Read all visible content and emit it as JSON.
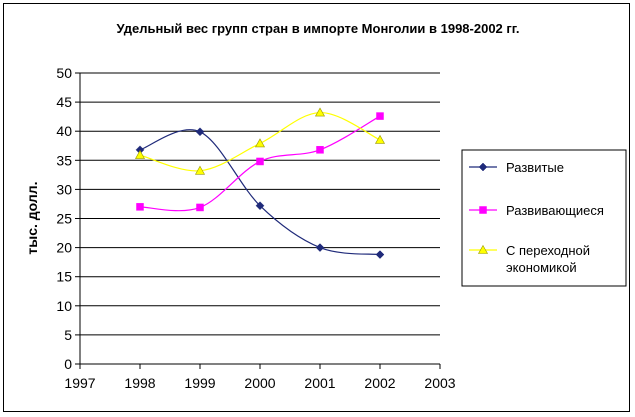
{
  "chart_data": {
    "type": "line",
    "title": "Удельный вес групп стран в импорте Монголии в 1998-2002 гг.",
    "xlabel": "",
    "ylabel": "тыс. долл.",
    "xlim": [
      1997,
      2003
    ],
    "ylim": [
      0,
      50
    ],
    "x_ticks": [
      "1997",
      "1998",
      "1999",
      "2000",
      "2001",
      "2002",
      "2003"
    ],
    "y_ticks": [
      "0",
      "5",
      "10",
      "15",
      "20",
      "25",
      "30",
      "35",
      "40",
      "45",
      "50"
    ],
    "grid": "horizontal",
    "legend_position": "right",
    "x": [
      1998,
      1999,
      2000,
      2001,
      2002
    ],
    "series": [
      {
        "name": "Развитые",
        "color": "#1F2A7A",
        "marker": "diamond",
        "values": [
          36.8,
          39.9,
          27.2,
          20.0,
          18.8
        ]
      },
      {
        "name": "Развивающиеся",
        "color": "#FF00FF",
        "marker": "square",
        "values": [
          27.0,
          26.9,
          34.8,
          36.8,
          42.6
        ]
      },
      {
        "name": "С переходной экономикой",
        "legend_lines": [
          "С переходной",
          "экономикой"
        ],
        "color": "#FFFF00",
        "marker": "triangle",
        "values": [
          35.9,
          33.2,
          37.9,
          43.2,
          38.5
        ]
      }
    ]
  }
}
